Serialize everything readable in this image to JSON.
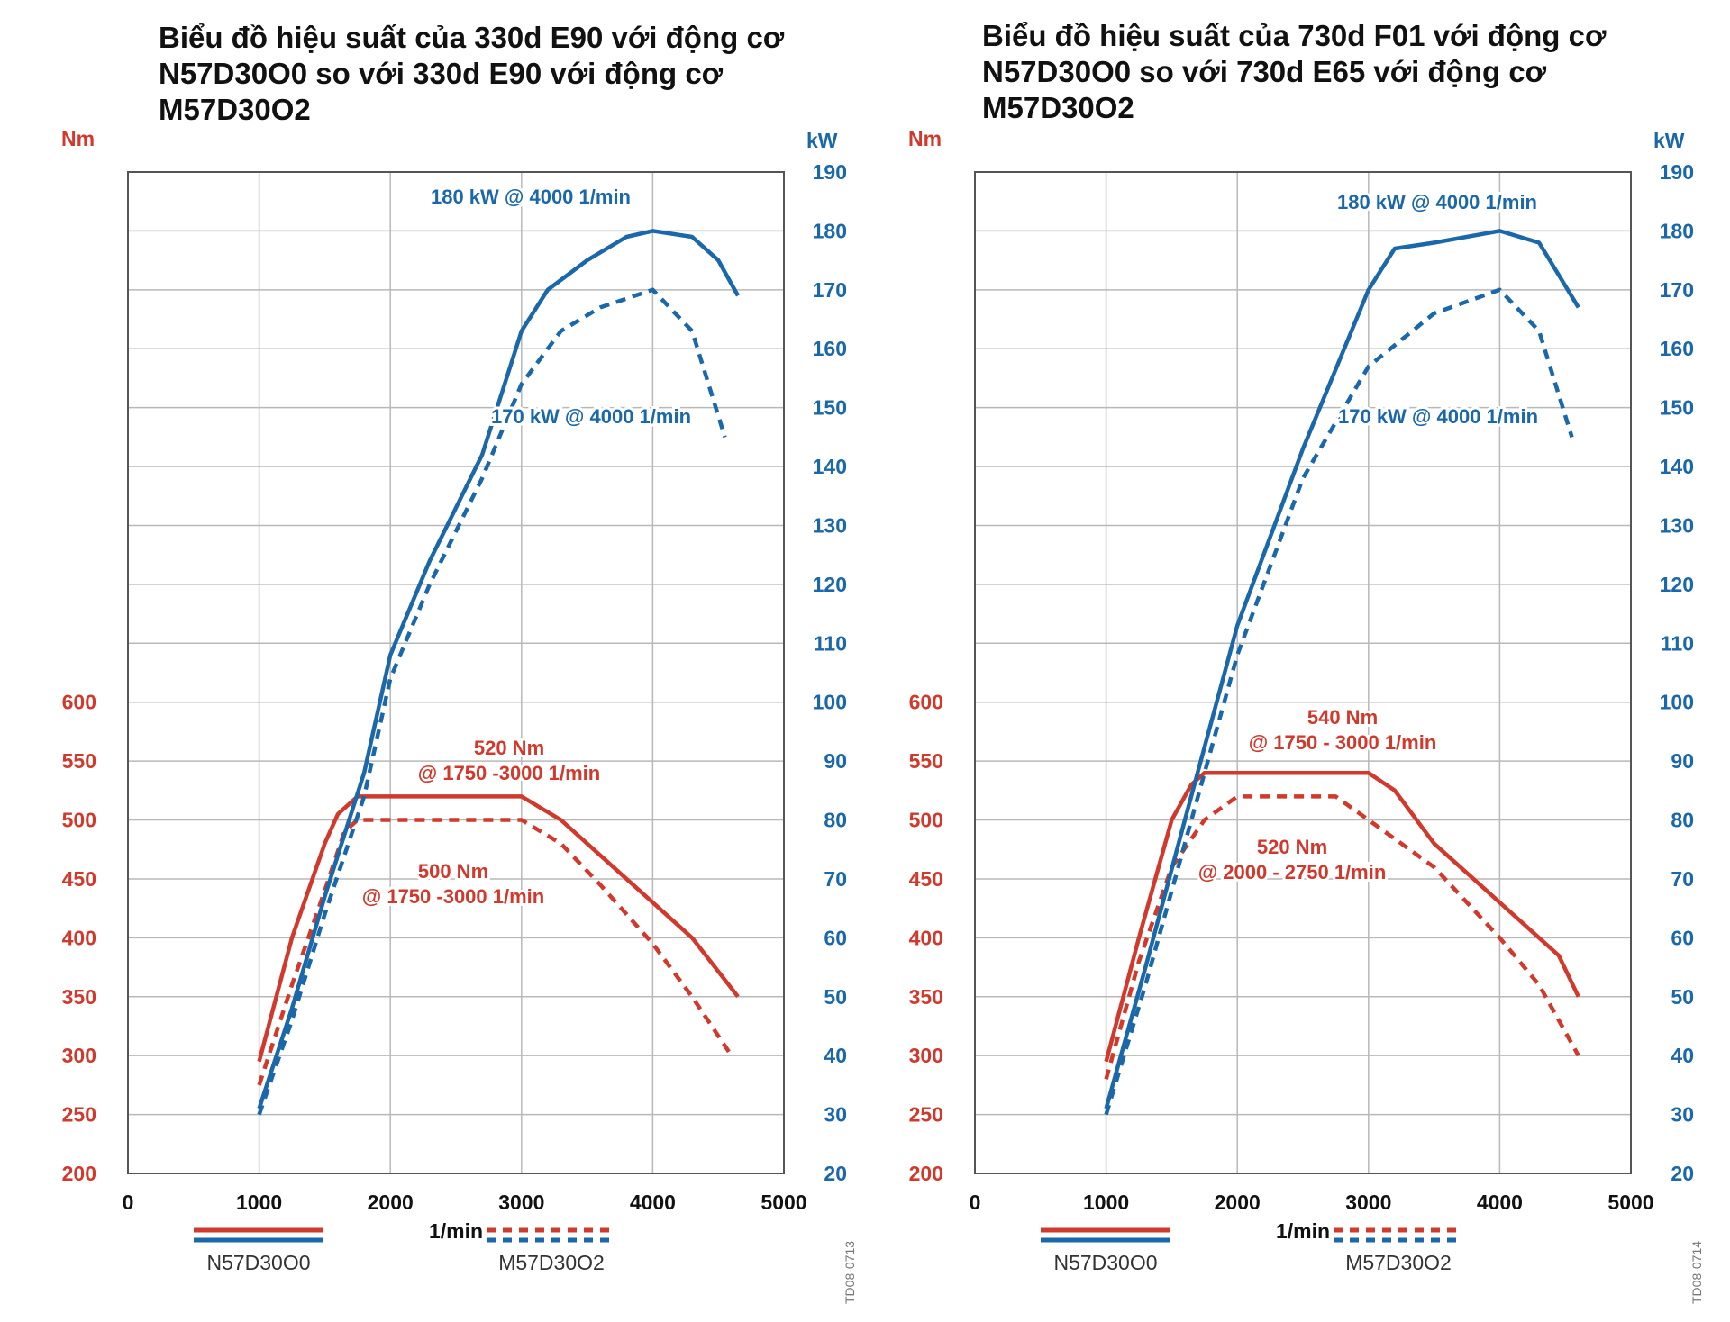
{
  "colors": {
    "torque": "#d0392b",
    "power": "#1a67a9",
    "grid": "#b8b8b8",
    "frame": "#555555"
  },
  "charts": [
    {
      "title": "Biểu đồ hiệu suất của 330d E90 với động cơ\nN57D30O0 so với 330d E90 với động cơ\nM57D30O2",
      "y_left_unit": "Nm",
      "y_right_unit": "kW",
      "x_label": "1/min",
      "x_ticks": [
        "0",
        "1000",
        "2000",
        "3000",
        "4000",
        "5000"
      ],
      "y_left_ticks": [
        "200",
        "250",
        "300",
        "350",
        "400",
        "450",
        "500",
        "550",
        "600"
      ],
      "y_right_ticks": [
        "20",
        "30",
        "40",
        "50",
        "60",
        "70",
        "80",
        "90",
        "100",
        "110",
        "120",
        "130",
        "140",
        "150",
        "160",
        "170",
        "180",
        "190"
      ],
      "annotations": {
        "power_new": "180 kW @ 4000 1/min",
        "power_old": "170 kW @ 4000 1/min",
        "torque_new_1": "520 Nm",
        "torque_new_2": "@ 1750 -3000 1/min",
        "torque_old_1": "500 Nm",
        "torque_old_2": "@ 1750 -3000 1/min"
      },
      "legend": {
        "solid": "N57D30O0",
        "dashed": "M57D30O2"
      },
      "code": "TD08-0713"
    },
    {
      "title": "Biểu đồ hiệu suất của 730d F01 với động cơ\nN57D30O0 so với 730d E65 với động cơ\nM57D30O2",
      "y_left_unit": "Nm",
      "y_right_unit": "kW",
      "x_label": "1/min",
      "x_ticks": [
        "0",
        "1000",
        "2000",
        "3000",
        "4000",
        "5000"
      ],
      "y_left_ticks": [
        "200",
        "250",
        "300",
        "350",
        "400",
        "450",
        "500",
        "550",
        "600"
      ],
      "y_right_ticks": [
        "20",
        "30",
        "40",
        "50",
        "60",
        "70",
        "80",
        "90",
        "100",
        "110",
        "120",
        "130",
        "140",
        "150",
        "160",
        "170",
        "180",
        "190"
      ],
      "annotations": {
        "power_new": "180 kW @ 4000 1/min",
        "power_old": "170 kW @ 4000 1/min",
        "torque_new_1": "540 Nm",
        "torque_new_2": "@ 1750 - 3000 1/min",
        "torque_old_1": "520 Nm",
        "torque_old_2": "@ 2000 - 2750 1/min"
      },
      "legend": {
        "solid": "N57D30O0",
        "dashed": "M57D30O2"
      },
      "code": "TD08-0714"
    }
  ],
  "chart_data": [
    {
      "type": "line",
      "title": "Biểu đồ hiệu suất của 330d E90 với động cơ N57D30O0 so với 330d E90 với động cơ M57D30O2",
      "xlabel": "1/min",
      "ylabel_left": "Nm",
      "ylabel_right": "kW",
      "xlim": [
        0,
        5000
      ],
      "ylim_left": [
        200,
        600
      ],
      "ylim_right": [
        20,
        190
      ],
      "grid": true,
      "legend": "bottom",
      "series": [
        {
          "name": "N57D30O0 torque",
          "axis": "left",
          "style": "solid",
          "color": "#d0392b",
          "x": [
            1000,
            1250,
            1500,
            1600,
            1750,
            3000,
            3300,
            3600,
            4000,
            4300,
            4650
          ],
          "y": [
            295,
            400,
            480,
            505,
            520,
            520,
            500,
            470,
            430,
            400,
            350
          ]
        },
        {
          "name": "M57D30O2 torque",
          "axis": "left",
          "style": "dashed",
          "color": "#d0392b",
          "x": [
            1000,
            1250,
            1500,
            1650,
            1750,
            3000,
            3300,
            3600,
            4000,
            4300,
            4600
          ],
          "y": [
            275,
            360,
            440,
            490,
            500,
            500,
            480,
            445,
            395,
            350,
            300
          ]
        },
        {
          "name": "N57D30O0 power",
          "axis": "right",
          "style": "solid",
          "color": "#1a67a9",
          "x": [
            1000,
            1250,
            1500,
            1800,
            2000,
            2300,
            2700,
            3000,
            3200,
            3500,
            3800,
            4000,
            4300,
            4500,
            4650
          ],
          "y": [
            31,
            48,
            67,
            88,
            108,
            124,
            142,
            163,
            170,
            175,
            179,
            180,
            179,
            175,
            169
          ]
        },
        {
          "name": "M57D30O2 power",
          "axis": "right",
          "style": "dashed",
          "color": "#1a67a9",
          "x": [
            1000,
            1250,
            1500,
            1800,
            2000,
            2300,
            2700,
            3000,
            3300,
            3600,
            4000,
            4300,
            4550
          ],
          "y": [
            30,
            46,
            64,
            84,
            104,
            120,
            138,
            154,
            163,
            167,
            170,
            163,
            145
          ]
        }
      ],
      "annotations": [
        "180 kW @ 4000 1/min",
        "170 kW @ 4000 1/min",
        "520 Nm @ 1750 -3000 1/min",
        "500 Nm @ 1750 -3000 1/min"
      ]
    },
    {
      "type": "line",
      "title": "Biểu đồ hiệu suất của 730d F01 với động cơ N57D30O0 so với 730d E65 với động cơ M57D30O2",
      "xlabel": "1/min",
      "ylabel_left": "Nm",
      "ylabel_right": "kW",
      "xlim": [
        0,
        5000
      ],
      "ylim_left": [
        200,
        600
      ],
      "ylim_right": [
        20,
        190
      ],
      "grid": true,
      "legend": "bottom",
      "series": [
        {
          "name": "N57D30O0 torque",
          "axis": "left",
          "style": "solid",
          "color": "#d0392b",
          "x": [
            1000,
            1250,
            1500,
            1650,
            1750,
            3000,
            3200,
            3500,
            3800,
            4200,
            4450,
            4600
          ],
          "y": [
            295,
            400,
            500,
            530,
            540,
            540,
            525,
            480,
            450,
            410,
            385,
            350
          ]
        },
        {
          "name": "M57D30O2 torque",
          "axis": "left",
          "style": "dashed",
          "color": "#d0392b",
          "x": [
            1000,
            1250,
            1500,
            1750,
            2000,
            2750,
            3000,
            3500,
            4000,
            4300,
            4600
          ],
          "y": [
            280,
            380,
            460,
            500,
            520,
            520,
            500,
            460,
            400,
            360,
            300
          ]
        },
        {
          "name": "N57D30O0 power",
          "axis": "right",
          "style": "solid",
          "color": "#1a67a9",
          "x": [
            1000,
            1300,
            1600,
            2000,
            2500,
            3000,
            3200,
            3500,
            4000,
            4300,
            4600
          ],
          "y": [
            31,
            55,
            80,
            113,
            143,
            170,
            177,
            178,
            180,
            178,
            167
          ]
        },
        {
          "name": "M57D30O2 power",
          "axis": "right",
          "style": "dashed",
          "color": "#1a67a9",
          "x": [
            1000,
            1300,
            1600,
            2000,
            2500,
            3000,
            3500,
            4000,
            4300,
            4550
          ],
          "y": [
            30,
            52,
            76,
            108,
            138,
            157,
            166,
            170,
            163,
            145
          ]
        }
      ],
      "annotations": [
        "180 kW @ 4000 1/min",
        "170 kW @ 4000 1/min",
        "540 Nm @ 1750 - 3000 1/min",
        "520 Nm @ 2000 - 2750 1/min"
      ]
    }
  ]
}
